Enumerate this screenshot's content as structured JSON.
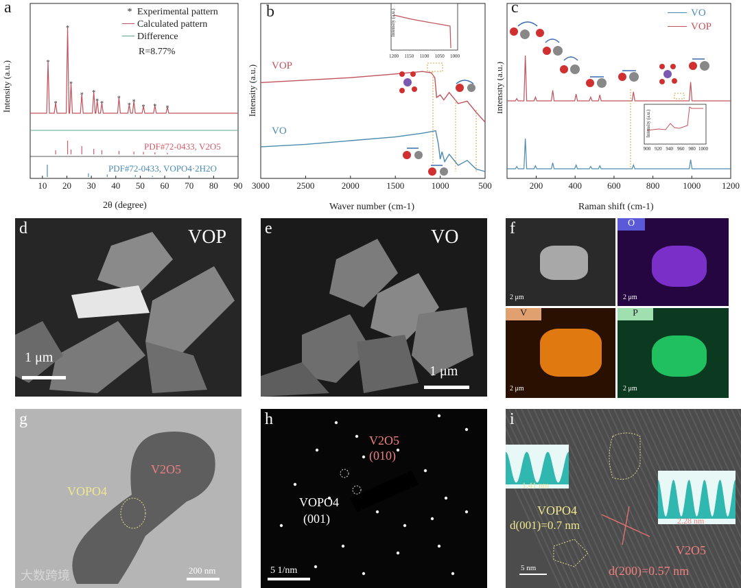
{
  "figure": {
    "panels": {
      "a": {
        "label": "a",
        "legend": [
          "Experimental pattern",
          "Calculated pattern",
          "Difference"
        ],
        "r_value": "R=8.77%",
        "ref1": "PDF#72-0433, V2O5",
        "ref2": "PDF#72-0433, VOPO4·2H2O",
        "ylabel": "Intensity (a.u.)",
        "xlabel": "2θ (degree)"
      },
      "b": {
        "label": "b",
        "vop": "VOP",
        "vo": "VO",
        "ylabel": "Intensity (a.u.)",
        "xlabel": "Waver number (cm-1)",
        "inset_ylabel": "Intensity (a.u.)"
      },
      "c": {
        "label": "c",
        "legend": [
          "VO",
          "VOP"
        ],
        "ylabel": "Intensity (a.u.)",
        "xlabel": "Raman shift (cm-1)",
        "inset_ylabel": "Intensity (a.u.)"
      },
      "d": {
        "label": "d",
        "title": "VOP",
        "scale": "1 μm"
      },
      "e": {
        "label": "e",
        "title": "VO",
        "scale": "1 μm"
      },
      "f": {
        "label": "f",
        "elements": [
          "O",
          "V",
          "P"
        ],
        "scale": "2 μm"
      },
      "g": {
        "label": "g",
        "vopo4": "VOPO4",
        "v2o5": "V2O5",
        "scale": "200 nm"
      },
      "h": {
        "label": "h",
        "v2o5": "V2O5",
        "v2o5_plane": "(010)",
        "vopo4": "VOPO4",
        "vopo4_plane": "(001)",
        "scale": "5 1/nm"
      },
      "i": {
        "label": "i",
        "d1": "1.41 nm",
        "d2": "2.28 nm",
        "vopo4": "VOPO4",
        "d001": "d(001)=0.7 nm",
        "v2o5": "V2O5",
        "d200": "d(200)=0.57 nm",
        "scale": "5 nm"
      }
    },
    "watermark": "大数跨境"
  },
  "chart_data": [
    {
      "type": "line",
      "title": "a",
      "xlabel": "2θ (degree)",
      "ylabel": "Intensity (a.u.)",
      "xlim": [
        5,
        90
      ],
      "xticks": [
        10,
        20,
        30,
        40,
        50,
        60,
        70,
        80,
        90
      ],
      "peaks_x": [
        12.3,
        15.4,
        20.3,
        21.7,
        26.1,
        31.0,
        32.4,
        34.3,
        41.3,
        45.5,
        47.4,
        51.3,
        56.0,
        61.1
      ],
      "peaks_y": [
        60,
        12,
        100,
        35,
        22,
        25,
        15,
        12,
        18,
        10,
        14,
        8,
        9,
        7
      ],
      "ref_v2o5_x": [
        15.4,
        20.3,
        21.7,
        26.1,
        31.0,
        34.3,
        41.3,
        47.4,
        51.3,
        56.0,
        61.1
      ],
      "ref_v2o5_y": [
        30,
        100,
        35,
        60,
        40,
        30,
        25,
        20,
        18,
        15,
        12
      ],
      "ref_vopo4_x": [
        12.0,
        28.8,
        36.5,
        48.0,
        55.0
      ],
      "ref_vopo4_y": [
        100,
        30,
        20,
        15,
        10
      ]
    },
    {
      "type": "line",
      "title": "b",
      "xlabel": "Waver number (cm-1)",
      "ylabel": "Intensity (a.u.)",
      "xlim": [
        3000,
        500
      ],
      "xticks": [
        3000,
        2500,
        2000,
        1500,
        1000,
        500
      ],
      "series": [
        {
          "name": "VOP",
          "x": [
            3000,
            2500,
            2000,
            1500,
            1200,
            1100,
            1060,
            1040,
            1000,
            960,
            900,
            800,
            700,
            600,
            500
          ],
          "y": [
            72,
            74,
            76,
            79,
            81,
            80,
            76,
            60,
            62,
            58,
            64,
            55,
            57,
            48,
            40
          ]
        },
        {
          "name": "VO",
          "x": [
            3000,
            2500,
            2000,
            1500,
            1200,
            1050,
            1020,
            1000,
            980,
            950,
            900,
            800,
            700,
            600,
            500
          ],
          "y": [
            20,
            22,
            25,
            28,
            31,
            33,
            22,
            10,
            16,
            8,
            14,
            5,
            9,
            2,
            0
          ]
        }
      ],
      "inset": {
        "xlim": [
          1200,
          1000
        ],
        "xticks": [
          1200,
          1150,
          1100,
          1050,
          1000
        ]
      }
    },
    {
      "type": "line",
      "title": "c",
      "xlabel": "Raman shift (cm-1)",
      "ylabel": "Intensity (a.u.)",
      "xlim": [
        50,
        1200
      ],
      "xticks": [
        200,
        400,
        600,
        800,
        1000,
        1200
      ],
      "series": [
        {
          "name": "VO",
          "peaks_x": [
            100,
            144,
            196,
            285,
            405,
            480,
            527,
            700,
            994
          ],
          "peaks_y": [
            3,
            40,
            4,
            8,
            5,
            3,
            4,
            5,
            12
          ]
        },
        {
          "name": "VOP",
          "peaks_x": [
            100,
            144,
            196,
            285,
            405,
            480,
            527,
            700,
            994
          ],
          "peaks_y": [
            3,
            60,
            5,
            14,
            9,
            5,
            8,
            12,
            25
          ]
        }
      ],
      "inset": {
        "xlim": [
          900,
          1000
        ],
        "xticks": [
          900,
          920,
          940,
          960,
          980,
          1000
        ]
      }
    }
  ]
}
